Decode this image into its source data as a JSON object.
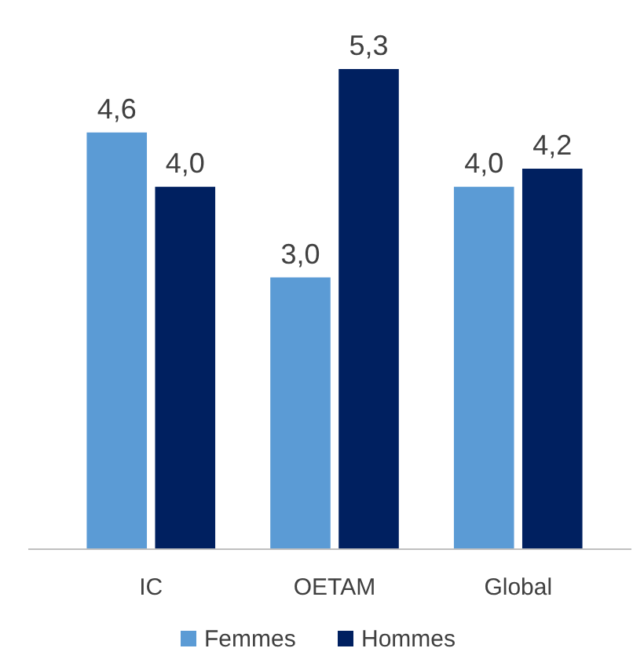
{
  "chart_data": {
    "type": "bar",
    "categories": [
      "IC",
      "OETAM",
      "Global"
    ],
    "series": [
      {
        "name": "Femmes",
        "color": "#5b9bd5",
        "values": [
          4.6,
          3.0,
          4.0
        ],
        "value_labels": [
          "4,6",
          "3,0",
          "4,0"
        ]
      },
      {
        "name": "Hommes",
        "color": "#002060",
        "values": [
          4.0,
          5.3,
          4.2
        ],
        "value_labels": [
          "4,0",
          "5,3",
          "4,2"
        ]
      }
    ],
    "legend": "bottom"
  }
}
